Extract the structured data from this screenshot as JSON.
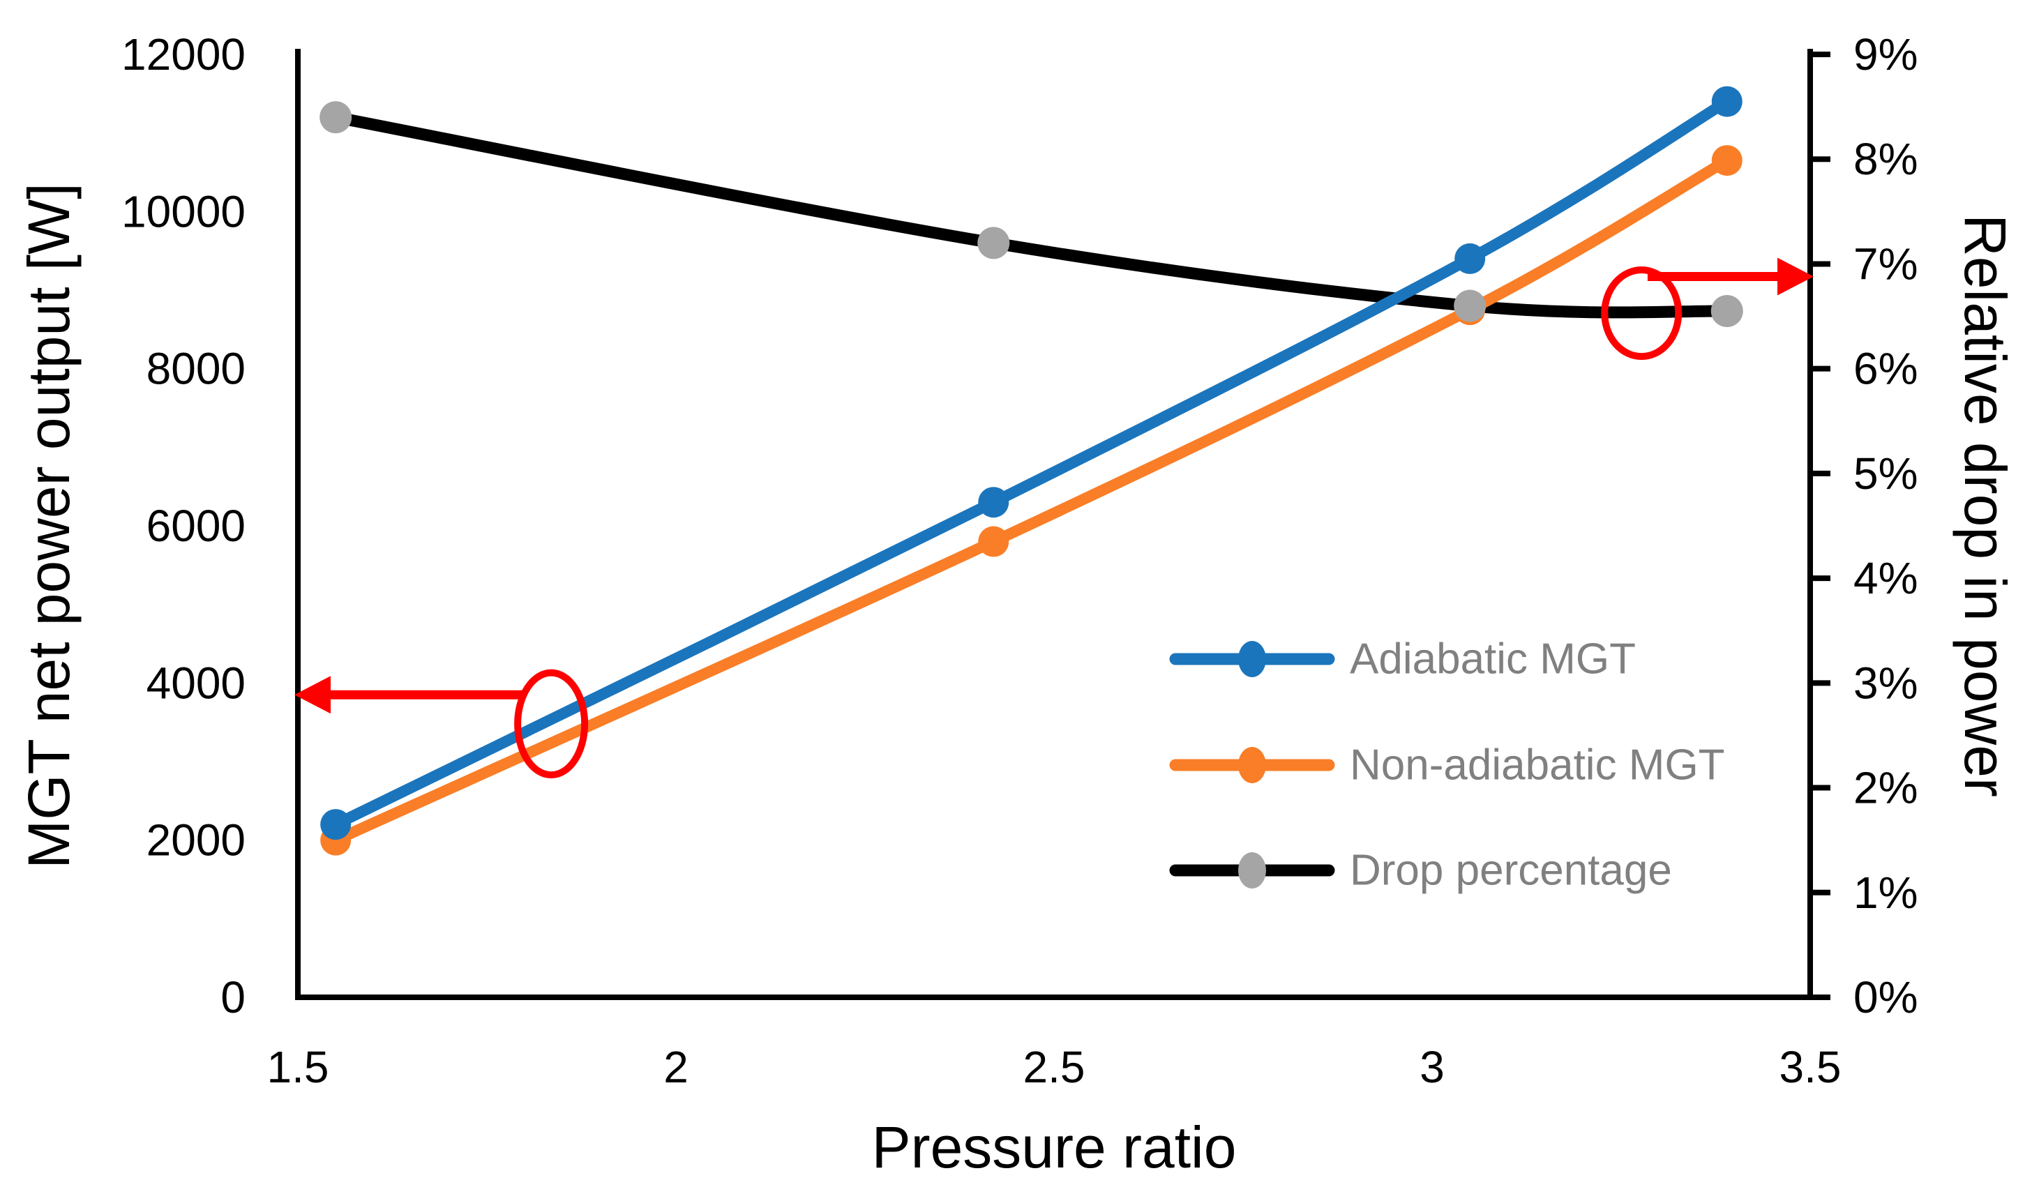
{
  "chart_data": {
    "type": "line",
    "xlabel": "Pressure ratio",
    "ylabel_left": "MGT net power output [W]",
    "ylabel_right": "Relative drop in power",
    "xlim": [
      1.5,
      3.5
    ],
    "ylim_left": [
      0,
      12000
    ],
    "ylim_right_percent": [
      0,
      9
    ],
    "grid": false,
    "x_ticks": [
      1.5,
      2,
      2.5,
      3,
      3.5
    ],
    "x_tick_labels": [
      "1.5",
      "2",
      "2.5",
      "3",
      "3.5"
    ],
    "left_ticks": [
      0,
      2000,
      4000,
      6000,
      8000,
      10000,
      12000
    ],
    "left_tick_labels": [
      "0",
      "2000",
      "4000",
      "6000",
      "8000",
      "10000",
      "12000"
    ],
    "right_ticks_percent": [
      0,
      1,
      2,
      3,
      4,
      5,
      6,
      7,
      8,
      9
    ],
    "right_tick_labels": [
      "0%",
      "1%",
      "2%",
      "3%",
      "4%",
      "5%",
      "6%",
      "7%",
      "8%",
      "9%"
    ],
    "x": [
      1.55,
      2.42,
      3.05,
      3.39
    ],
    "series": [
      {
        "name": "Drop percentage",
        "axis": "right",
        "line_color": "#000000",
        "marker_color": "#a5a5a5",
        "values": [
          8.4,
          7.2,
          6.6,
          6.55
        ],
        "unit": "%"
      },
      {
        "name": "Non-adiabatic MGT",
        "axis": "left",
        "line_color": "#f97e27",
        "marker_color": "#f97e27",
        "values": [
          2000,
          5800,
          8750,
          10650
        ],
        "unit": "W"
      },
      {
        "name": "Adiabatic MGT",
        "axis": "left",
        "line_color": "#1b75bc",
        "marker_color": "#1b75bc",
        "values": [
          2200,
          6300,
          9400,
          11400
        ],
        "unit": "W"
      }
    ],
    "legend": {
      "order": [
        "Adiabatic MGT",
        "Non-adiabatic MGT",
        "Drop percentage"
      ],
      "text_color": "#808080",
      "position": "middle-right"
    },
    "annotations": {
      "color": "#ff0000",
      "items": [
        {
          "kind": "ellipse",
          "axis": "left",
          "x": 1.835,
          "y": 3480,
          "x_radius": 0.0443,
          "y_radius": 650
        },
        {
          "kind": "arrow",
          "axis": "left",
          "y": 3850,
          "x_tail": 1.797,
          "x_head": 1.5,
          "direction": "left"
        },
        {
          "kind": "ellipse",
          "axis": "right",
          "x": 3.277,
          "y": 6.53,
          "x_radius": 0.0489,
          "y_radius": 0.413
        },
        {
          "kind": "arrow",
          "axis": "right",
          "y": 6.88,
          "x_tail": 3.285,
          "x_head": 3.5,
          "direction": "right"
        }
      ]
    },
    "axis_color": "#000000",
    "tick_label_color": "#000000"
  }
}
